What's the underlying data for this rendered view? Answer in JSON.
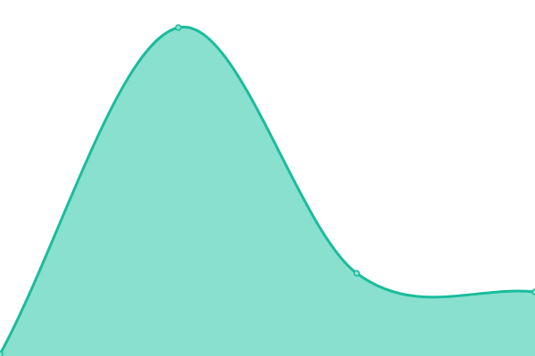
{
  "chart_data": {
    "type": "area",
    "title": "",
    "xlabel": "",
    "ylabel": "",
    "x": [
      0,
      1,
      2,
      3
    ],
    "values": [
      0.5,
      92.25,
      23.25,
      18
    ],
    "xlim": [
      0,
      3
    ],
    "ylim": [
      0,
      100
    ],
    "grid": false,
    "axes_visible": false,
    "curve": "smooth",
    "markers": true,
    "colors": {
      "line": "#1abc9c",
      "fill": "#89e0ce",
      "marker_fill": "#89e0ce"
    }
  }
}
